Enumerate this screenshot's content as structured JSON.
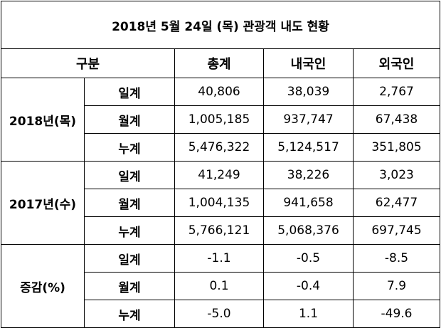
{
  "title": "2018년 5월 24일 (목) 관광객 내도 현황",
  "headers": {
    "category": "구분",
    "total": "총계",
    "domestic": "내국인",
    "foreign": "외국인"
  },
  "groups": [
    {
      "label": "2018년(목)",
      "rows": [
        {
          "label": "일계",
          "total": "40,806",
          "domestic": "38,039",
          "foreign": "2,767"
        },
        {
          "label": "월계",
          "total": "1,005,185",
          "domestic": "937,747",
          "foreign": "67,438"
        },
        {
          "label": "누계",
          "total": "5,476,322",
          "domestic": "5,124,517",
          "foreign": "351,805"
        }
      ]
    },
    {
      "label": "2017년(수)",
      "rows": [
        {
          "label": "일계",
          "total": "41,249",
          "domestic": "38,226",
          "foreign": "3,023"
        },
        {
          "label": "월계",
          "total": "1,004,135",
          "domestic": "941,658",
          "foreign": "62,477"
        },
        {
          "label": "누계",
          "total": "5,766,121",
          "domestic": "5,068,376",
          "foreign": "697,745"
        }
      ]
    },
    {
      "label": "증감(%)",
      "rows": [
        {
          "label": "일계",
          "total": "-1.1",
          "domestic": "-0.5",
          "foreign": "-8.5"
        },
        {
          "label": "월계",
          "total": "0.1",
          "domestic": "-0.4",
          "foreign": "7.9"
        },
        {
          "label": "누계",
          "total": "-5.0",
          "domestic": "1.1",
          "foreign": "-49.6"
        }
      ]
    }
  ]
}
